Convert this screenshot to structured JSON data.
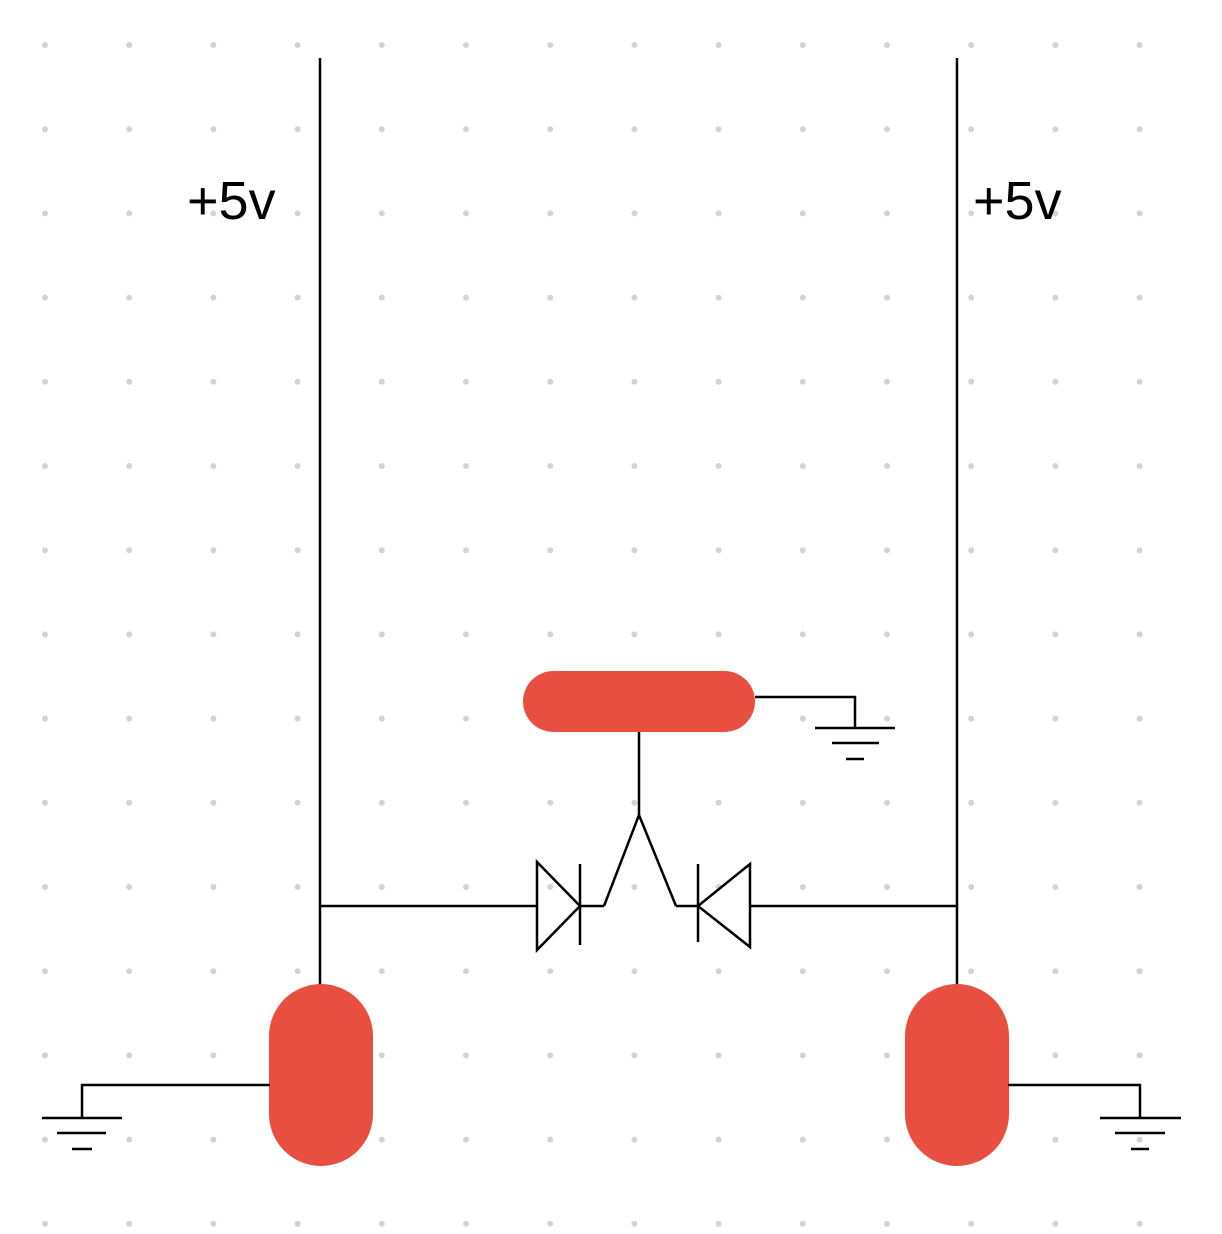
{
  "colors": {
    "background": "#ffffff",
    "grid_dot": "#d3d3d3",
    "wire": "#000000",
    "component_fill": "#e94f40"
  },
  "labels": {
    "supply_left": "+5v",
    "supply_right": "+5v"
  },
  "components": {
    "horizontal_pad": {
      "shape": "rounded-bar",
      "orientation": "horizontal"
    },
    "left_pad": {
      "shape": "rounded-bar",
      "orientation": "vertical"
    },
    "right_pad": {
      "shape": "rounded-bar",
      "orientation": "vertical"
    },
    "diode_left": {
      "symbol": "diode",
      "pointing": "right"
    },
    "diode_right": {
      "symbol": "diode",
      "pointing": "left"
    },
    "ground_symbols": [
      "ground-top",
      "ground-bottom-left",
      "ground-bottom-right"
    ]
  }
}
